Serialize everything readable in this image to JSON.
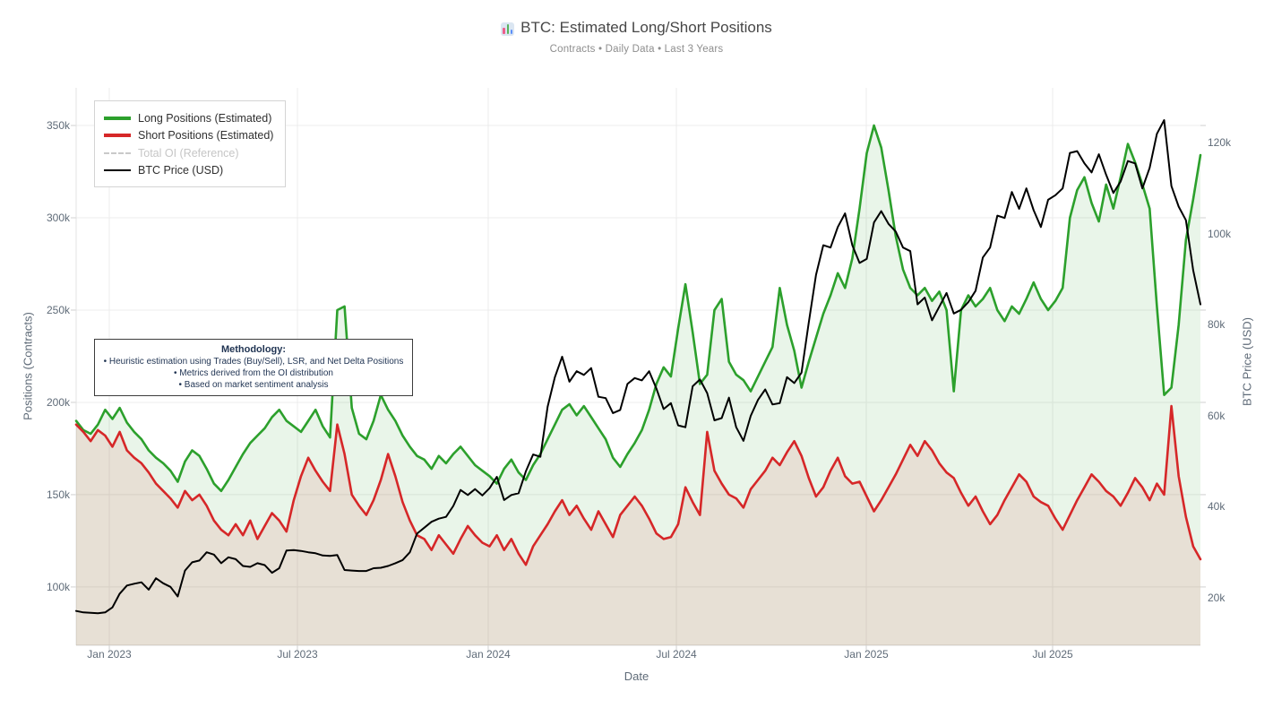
{
  "header": {
    "icon": "bar-chart",
    "title": "BTC: Estimated Long/Short Positions",
    "subtitle": "Contracts • Daily Data • Last 3 Years"
  },
  "legend": {
    "items": [
      {
        "label": "Long Positions (Estimated)",
        "color": "#2ca02c",
        "style": "solid",
        "thickness": 4,
        "active": true
      },
      {
        "label": "Short Positions (Estimated)",
        "color": "#d62728",
        "style": "solid",
        "thickness": 4,
        "active": true
      },
      {
        "label": "Total OI (Reference)",
        "color": "#c9c9c9",
        "style": "dashed",
        "thickness": 2,
        "active": false
      },
      {
        "label": "BTC Price (USD)",
        "color": "#000000",
        "style": "solid",
        "thickness": 2.5,
        "active": true
      }
    ]
  },
  "annotation": {
    "title": "Methodology:",
    "bullets": [
      "• Heuristic estimation using Trades (Buy/Sell), LSR, and Net Delta Positions",
      "• Metrics derived from the OI distribution",
      "• Based on market sentiment analysis"
    ]
  },
  "chart_data": {
    "type": "line",
    "title": "BTC: Estimated Long/Short Positions",
    "xlabel": "Date",
    "ylabel_left": "Positions (Contracts)",
    "ylabel_right": "BTC Price (USD)",
    "grid": true,
    "legend_position": "top-left",
    "x_range": [
      "2022-12",
      "2025-11"
    ],
    "x_tick_labels": [
      "Jan 2023",
      "Jul 2023",
      "Jan 2024",
      "Jul 2024",
      "Jan 2025",
      "Jul 2025"
    ],
    "x_tick_positions": [
      0.0295,
      0.1968,
      0.3665,
      0.5339,
      0.7028,
      0.8685
    ],
    "y_left_tick_labels": [
      "350k",
      "300k",
      "250k",
      "200k",
      "150k",
      "100k"
    ],
    "y_left_ticks": [
      350,
      300,
      250,
      200,
      150,
      100
    ],
    "ylim_left": [
      68.4,
      370.4
    ],
    "y_right_tick_labels": [
      "120k",
      "100k",
      "80k",
      "60k",
      "40k",
      "20k"
    ],
    "y_right_ticks": [
      120,
      100,
      80,
      60,
      40,
      20
    ],
    "ylim_right": [
      9.56,
      132.1
    ],
    "units_note": "positions in thousands of contracts, price in thousands of USD, weekly samples of daily data",
    "series": [
      {
        "name": "Long Positions (Estimated)",
        "axis": "left",
        "color": "#2ca02c",
        "fill": "rgba(44,160,44,0.10)",
        "line_width": 2.6,
        "hidden": false,
        "values": [
          190,
          185,
          183,
          188,
          196,
          191,
          197,
          189,
          184,
          180,
          174,
          170,
          167,
          163,
          157,
          168,
          174,
          171,
          164,
          156,
          152,
          158,
          165,
          172,
          178,
          182,
          186,
          192,
          196,
          190,
          187,
          184,
          190,
          196,
          187,
          181,
          250,
          252,
          197,
          183,
          180,
          190,
          204,
          196,
          190,
          182,
          176,
          171,
          169,
          164,
          171,
          167,
          172,
          176,
          171,
          166,
          163,
          160,
          156,
          164,
          169,
          162,
          158,
          166,
          172,
          180,
          188,
          196,
          199,
          193,
          198,
          192,
          186,
          180,
          170,
          165,
          172,
          178,
          185,
          196,
          210,
          219,
          214,
          240,
          264,
          238,
          210,
          215,
          250,
          256,
          222,
          215,
          212,
          206,
          214,
          222,
          230,
          262,
          242,
          228,
          208,
          222,
          235,
          248,
          258,
          270,
          262,
          278,
          305,
          335,
          350,
          338,
          315,
          290,
          272,
          262,
          258,
          262,
          255,
          260,
          250,
          206,
          250,
          258,
          252,
          256,
          262,
          250,
          244,
          252,
          248,
          256,
          265,
          256,
          250,
          255,
          262,
          300,
          315,
          322,
          308,
          298,
          318,
          305,
          322,
          340,
          330,
          318,
          305,
          252,
          204,
          208,
          242,
          288,
          310,
          334
        ]
      },
      {
        "name": "Short Positions (Estimated)",
        "axis": "left",
        "color": "#d62728",
        "fill": "rgba(214,39,40,0.10)",
        "line_width": 2.6,
        "hidden": false,
        "values": [
          188,
          184,
          179,
          185,
          182,
          176,
          184,
          174,
          170,
          167,
          162,
          156,
          152,
          148,
          143,
          152,
          147,
          150,
          144,
          136,
          131,
          128,
          134,
          128,
          136,
          126,
          133,
          140,
          136,
          130,
          147,
          160,
          170,
          163,
          157,
          152,
          188,
          172,
          150,
          144,
          139,
          147,
          158,
          172,
          160,
          146,
          136,
          128,
          126,
          120,
          128,
          123,
          118,
          126,
          133,
          128,
          124,
          122,
          128,
          120,
          126,
          118,
          112,
          122,
          128,
          134,
          141,
          147,
          139,
          144,
          137,
          131,
          141,
          134,
          127,
          139,
          144,
          149,
          144,
          137,
          129,
          126,
          127,
          134,
          154,
          146,
          139,
          184,
          163,
          156,
          150,
          148,
          143,
          153,
          158,
          163,
          170,
          166,
          173,
          179,
          171,
          159,
          149,
          154,
          163,
          170,
          160,
          156,
          157,
          149,
          141,
          147,
          154,
          161,
          169,
          177,
          171,
          179,
          174,
          167,
          162,
          159,
          151,
          144,
          149,
          141,
          134,
          139,
          147,
          154,
          161,
          157,
          149,
          146,
          144,
          137,
          131,
          139,
          147,
          154,
          161,
          157,
          152,
          149,
          144,
          151,
          159,
          154,
          147,
          156,
          150,
          198,
          160,
          138,
          122,
          115
        ]
      },
      {
        "name": "Total OI (Reference)",
        "axis": "left",
        "color": "#c9c9c9",
        "fill": null,
        "line_width": 2,
        "hidden": true,
        "values": []
      },
      {
        "name": "BTC Price (USD)",
        "axis": "right",
        "color": "#000000",
        "fill": null,
        "line_width": 2,
        "hidden": false,
        "values": [
          17.1,
          16.8,
          16.7,
          16.6,
          16.8,
          17.9,
          20.9,
          22.7,
          23.1,
          23.4,
          21.8,
          24.3,
          23.2,
          22.4,
          20.3,
          26.0,
          27.8,
          28.2,
          30.0,
          29.5,
          27.6,
          28.9,
          28.5,
          27.0,
          26.8,
          27.6,
          27.2,
          25.5,
          26.5,
          30.4,
          30.5,
          30.3,
          30.0,
          29.8,
          29.3,
          29.2,
          29.4,
          26.1,
          26.0,
          25.9,
          25.9,
          26.5,
          26.6,
          27.0,
          27.6,
          28.3,
          30.0,
          34.1,
          35.4,
          36.7,
          37.4,
          37.8,
          40.2,
          43.7,
          42.6,
          43.9,
          42.5,
          44.1,
          46.6,
          41.5,
          42.6,
          43.0,
          47.8,
          51.5,
          51.0,
          62.0,
          68.5,
          73.0,
          67.5,
          69.8,
          69.0,
          70.5,
          64.2,
          63.9,
          60.6,
          61.3,
          67.0,
          68.3,
          67.8,
          69.8,
          66.0,
          61.5,
          62.8,
          57.9,
          57.5,
          66.5,
          68.0,
          65.0,
          59.0,
          59.5,
          64.0,
          57.5,
          54.5,
          60.0,
          63.5,
          65.8,
          62.5,
          62.8,
          68.5,
          67.2,
          69.5,
          80.5,
          91.0,
          97.5,
          97.0,
          101.5,
          104.5,
          97.5,
          93.6,
          94.5,
          102.5,
          105.0,
          102.2,
          100.5,
          97.0,
          96.2,
          84.5,
          86.0,
          81.0,
          84.0,
          87.0,
          82.5,
          83.3,
          85.0,
          87.5,
          94.8,
          97.0,
          104.0,
          103.5,
          109.2,
          105.5,
          110.0,
          105.2,
          101.5,
          107.5,
          108.5,
          110.0,
          117.8,
          118.2,
          115.5,
          113.5,
          117.5,
          113.0,
          109.0,
          111.5,
          116.0,
          115.5,
          110.0,
          114.5,
          122.0,
          125.0,
          110.5,
          106.0,
          103.0,
          92.0,
          84.5
        ]
      }
    ]
  }
}
